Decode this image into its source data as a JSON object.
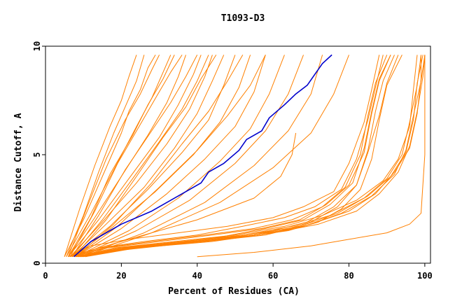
{
  "chart_data": {
    "type": "line",
    "title": "T1093-D3",
    "xlabel": "Percent of Residues (CA)",
    "ylabel": "Distance Cutoff, A",
    "xlim": [
      0,
      101.5
    ],
    "ylim": [
      0,
      10
    ],
    "x_ticks": [
      0,
      20,
      40,
      60,
      80,
      100
    ],
    "y_ticks": [
      0,
      5,
      10
    ],
    "grid": false,
    "legend": "none",
    "colors": {
      "models": "#ff8000",
      "highlight": "#0000cc",
      "axes": "#000000"
    },
    "series": [
      {
        "x": [
          7.5,
          12,
          20,
          28,
          35,
          41,
          43,
          47,
          51,
          53,
          57,
          59,
          63,
          66,
          69,
          71,
          73,
          75.5
        ],
        "y": [
          0.3,
          1.0,
          1.8,
          2.4,
          3.1,
          3.7,
          4.2,
          4.6,
          5.2,
          5.7,
          6.1,
          6.7,
          7.3,
          7.8,
          8.2,
          8.7,
          9.2,
          9.6
        ],
        "highlight": true
      },
      {
        "x": [
          5,
          10,
          15,
          20,
          22,
          25,
          27,
          29
        ],
        "y": [
          0.3,
          2.0,
          4.0,
          6.0,
          7.0,
          8.0,
          9.0,
          9.6
        ]
      },
      {
        "x": [
          5.5,
          12,
          18,
          24,
          28,
          31,
          33
        ],
        "y": [
          0.3,
          2.3,
          4.3,
          6.3,
          7.6,
          8.8,
          9.6
        ]
      },
      {
        "x": [
          6,
          13,
          20,
          27,
          32,
          35,
          37
        ],
        "y": [
          0.3,
          2.1,
          4.0,
          5.9,
          7.4,
          8.6,
          9.6
        ]
      },
      {
        "x": [
          6,
          14,
          22,
          30,
          35,
          39,
          41
        ],
        "y": [
          0.3,
          2.0,
          3.9,
          5.8,
          7.3,
          8.7,
          9.6
        ]
      },
      {
        "x": [
          6.5,
          15,
          24,
          32,
          38,
          42,
          44
        ],
        "y": [
          0.3,
          1.9,
          3.7,
          5.5,
          7.1,
          8.6,
          9.6
        ]
      },
      {
        "x": [
          7,
          16,
          26,
          34,
          40,
          44,
          47
        ],
        "y": [
          0.3,
          1.8,
          3.5,
          5.3,
          6.9,
          8.4,
          9.6
        ]
      },
      {
        "x": [
          7,
          17,
          27,
          36,
          43,
          47,
          50
        ],
        "y": [
          0.3,
          1.7,
          3.4,
          5.1,
          6.6,
          8.2,
          9.6
        ]
      },
      {
        "x": [
          7.5,
          18,
          29,
          39,
          46,
          51,
          54
        ],
        "y": [
          0.3,
          1.7,
          3.3,
          5.0,
          6.5,
          8.1,
          9.6
        ]
      },
      {
        "x": [
          8,
          20,
          32,
          42,
          50,
          55,
          58
        ],
        "y": [
          0.3,
          1.6,
          3.2,
          4.8,
          6.3,
          7.9,
          9.6
        ]
      },
      {
        "x": [
          8,
          22,
          35,
          46,
          54,
          59,
          63
        ],
        "y": [
          0.3,
          1.5,
          3.0,
          4.7,
          6.2,
          7.8,
          9.6
        ]
      },
      {
        "x": [
          8.5,
          24,
          38,
          50,
          58,
          64,
          68
        ],
        "y": [
          0.3,
          1.5,
          2.9,
          4.6,
          6.1,
          7.8,
          9.6
        ]
      },
      {
        "x": [
          9,
          26,
          42,
          55,
          64,
          70,
          73
        ],
        "y": [
          0.3,
          1.4,
          2.8,
          4.5,
          6.1,
          7.8,
          9.6
        ]
      },
      {
        "x": [
          9.5,
          28,
          46,
          60,
          70,
          76,
          80
        ],
        "y": [
          0.3,
          1.4,
          2.8,
          4.4,
          6.0,
          7.8,
          9.6
        ]
      },
      {
        "x": [
          5,
          9,
          13,
          17,
          20,
          22,
          24
        ],
        "y": [
          0.3,
          2.5,
          4.5,
          6.3,
          7.5,
          8.6,
          9.6
        ]
      },
      {
        "x": [
          6,
          11,
          16,
          21,
          25,
          28,
          30
        ],
        "y": [
          0.3,
          2.6,
          4.8,
          6.6,
          7.8,
          8.9,
          9.6
        ]
      },
      {
        "x": [
          6.5,
          13,
          19,
          25,
          29,
          33,
          36
        ],
        "y": [
          0.3,
          2.4,
          4.6,
          6.4,
          7.6,
          8.8,
          9.6
        ]
      },
      {
        "x": [
          7,
          14,
          21,
          28,
          33,
          37,
          40
        ],
        "y": [
          0.3,
          2.2,
          4.3,
          6.1,
          7.4,
          8.6,
          9.6
        ]
      },
      {
        "x": [
          7.5,
          16,
          24,
          31,
          37,
          41,
          45
        ],
        "y": [
          0.3,
          2.0,
          4.0,
          5.8,
          7.2,
          8.5,
          9.6
        ]
      },
      {
        "x": [
          8,
          18,
          28,
          36,
          43,
          48,
          52
        ],
        "y": [
          0.3,
          1.8,
          3.7,
          5.5,
          7.0,
          8.4,
          9.6
        ]
      },
      {
        "x": [
          5.5,
          10,
          14,
          18,
          21,
          24,
          26
        ],
        "y": [
          0.3,
          2.2,
          4.2,
          6.0,
          7.2,
          8.4,
          9.6
        ]
      },
      {
        "x": [
          6,
          12,
          17,
          23,
          27,
          31,
          34
        ],
        "y": [
          0.3,
          2.1,
          4.1,
          5.9,
          7.3,
          8.5,
          9.6
        ]
      },
      {
        "x": [
          7,
          15,
          23,
          30,
          36,
          40,
          43
        ],
        "y": [
          0.3,
          2.0,
          3.9,
          5.6,
          7.1,
          8.4,
          9.6
        ]
      },
      {
        "x": [
          8,
          19,
          30,
          40,
          48,
          54,
          58
        ],
        "y": [
          0.3,
          1.7,
          3.5,
          5.2,
          6.8,
          8.2,
          9.6
        ]
      },
      {
        "x": [
          6,
          20,
          40,
          55,
          62,
          65,
          66
        ],
        "y": [
          0.3,
          1.0,
          2.0,
          3.0,
          4.0,
          5.0,
          6.0
        ]
      },
      {
        "x": [
          6,
          12,
          22,
          35,
          48,
          60,
          68,
          76,
          80,
          84,
          86,
          88
        ],
        "y": [
          0.3,
          0.8,
          1.1,
          1.4,
          1.7,
          2.1,
          2.6,
          3.3,
          4.6,
          6.5,
          8.0,
          9.6
        ]
      },
      {
        "x": [
          6.5,
          14,
          26,
          40,
          52,
          63,
          71,
          78,
          82,
          85,
          87,
          89
        ],
        "y": [
          0.3,
          0.7,
          1.0,
          1.3,
          1.7,
          2.1,
          2.6,
          3.4,
          4.8,
          6.6,
          8.1,
          9.6
        ]
      },
      {
        "x": [
          7,
          15,
          28,
          42,
          55,
          65,
          73,
          79,
          83,
          85,
          87,
          90
        ],
        "y": [
          0.3,
          0.7,
          1.0,
          1.3,
          1.6,
          2.0,
          2.6,
          3.5,
          5.0,
          6.8,
          8.3,
          9.6
        ]
      },
      {
        "x": [
          7.5,
          16,
          30,
          44,
          57,
          67,
          74,
          80,
          84,
          86,
          88,
          91
        ],
        "y": [
          0.3,
          0.7,
          1.0,
          1.3,
          1.6,
          2.0,
          2.7,
          3.6,
          5.1,
          6.9,
          8.4,
          9.6
        ]
      },
      {
        "x": [
          8,
          17,
          32,
          46,
          58,
          68,
          75,
          81,
          84,
          86,
          88,
          91
        ],
        "y": [
          0.3,
          0.6,
          0.9,
          1.2,
          1.6,
          2.0,
          2.7,
          3.7,
          5.3,
          7.0,
          8.5,
          9.6
        ]
      },
      {
        "x": [
          8.5,
          18,
          34,
          48,
          60,
          69,
          76,
          82,
          85,
          87,
          89,
          92
        ],
        "y": [
          0.3,
          0.6,
          0.9,
          1.2,
          1.5,
          1.9,
          2.6,
          3.6,
          5.2,
          7.0,
          8.4,
          9.6
        ]
      },
      {
        "x": [
          9,
          19,
          35,
          50,
          62,
          70,
          77,
          82,
          85,
          88,
          90,
          93
        ],
        "y": [
          0.3,
          0.6,
          0.9,
          1.2,
          1.5,
          1.9,
          2.6,
          3.6,
          5.1,
          6.8,
          8.3,
          9.6
        ]
      },
      {
        "x": [
          9.5,
          20,
          36,
          52,
          64,
          72,
          78,
          83,
          86,
          88,
          90,
          94
        ],
        "y": [
          0.3,
          0.6,
          0.9,
          1.2,
          1.5,
          1.9,
          2.5,
          3.4,
          4.8,
          6.6,
          8.2,
          9.6
        ]
      },
      {
        "x": [
          8,
          18,
          34,
          50,
          63,
          73,
          82,
          89,
          93,
          96,
          97,
          98
        ],
        "y": [
          0.3,
          0.7,
          1.0,
          1.3,
          1.7,
          2.2,
          2.9,
          3.8,
          4.8,
          6.3,
          8.0,
          9.6
        ]
      },
      {
        "x": [
          8.5,
          19,
          36,
          52,
          65,
          75,
          84,
          90,
          94,
          96,
          98,
          99
        ],
        "y": [
          0.3,
          0.7,
          1.0,
          1.3,
          1.7,
          2.2,
          3.0,
          3.9,
          5.0,
          6.5,
          8.2,
          9.6
        ]
      },
      {
        "x": [
          9,
          20,
          38,
          54,
          67,
          77,
          85,
          91,
          95,
          97,
          98,
          99.5
        ],
        "y": [
          0.3,
          0.7,
          1.0,
          1.3,
          1.7,
          2.3,
          3.1,
          4.0,
          5.1,
          6.6,
          8.3,
          9.6
        ]
      },
      {
        "x": [
          9.5,
          21,
          40,
          56,
          68,
          78,
          86,
          92,
          95,
          97,
          99,
          100
        ],
        "y": [
          0.3,
          0.7,
          1.0,
          1.3,
          1.7,
          2.3,
          3.1,
          4.1,
          5.2,
          6.8,
          8.4,
          9.6
        ]
      },
      {
        "x": [
          10,
          22,
          42,
          58,
          70,
          80,
          87,
          92,
          96,
          98,
          99,
          99
        ],
        "y": [
          0.3,
          0.7,
          1.0,
          1.3,
          1.8,
          2.4,
          3.2,
          4.2,
          5.3,
          6.9,
          8.5,
          9.6
        ]
      },
      {
        "x": [
          10.5,
          24,
          44,
          60,
          72,
          82,
          88,
          93,
          96,
          98,
          99.5,
          100
        ],
        "y": [
          0.3,
          0.7,
          1.0,
          1.4,
          1.8,
          2.4,
          3.2,
          4.2,
          5.4,
          7.0,
          8.6,
          9.6
        ]
      },
      {
        "x": [
          40,
          55,
          70,
          80,
          90,
          96,
          99,
          100,
          100
        ],
        "y": [
          0.3,
          0.5,
          0.8,
          1.1,
          1.4,
          1.8,
          2.3,
          5.0,
          9.6
        ]
      }
    ]
  }
}
